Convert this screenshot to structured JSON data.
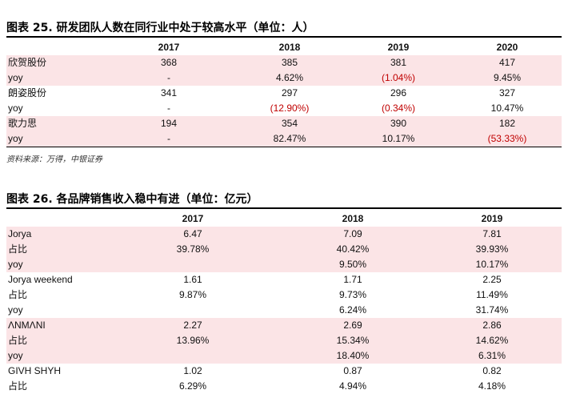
{
  "table1": {
    "title": "图表 25. 研发团队人数在同行业中处于较高水平（单位：人）",
    "headers": [
      "",
      "2017",
      "2018",
      "2019",
      "2020"
    ],
    "rows": [
      {
        "label": "欣贺股份",
        "values": [
          "368",
          "385",
          "381",
          "417"
        ],
        "negative": [
          false,
          false,
          false,
          false
        ],
        "shaded": true
      },
      {
        "label": "yoy",
        "values": [
          "-",
          "4.62%",
          "(1.04%)",
          "9.45%"
        ],
        "negative": [
          false,
          false,
          true,
          false
        ],
        "shaded": true
      },
      {
        "label": "朗姿股份",
        "values": [
          "341",
          "297",
          "296",
          "327"
        ],
        "negative": [
          false,
          false,
          false,
          false
        ],
        "shaded": false
      },
      {
        "label": "yoy",
        "values": [
          "-",
          "(12.90%)",
          "(0.34%)",
          "10.47%"
        ],
        "negative": [
          false,
          true,
          true,
          false
        ],
        "shaded": false
      },
      {
        "label": "歌力思",
        "values": [
          "194",
          "354",
          "390",
          "182"
        ],
        "negative": [
          false,
          false,
          false,
          false
        ],
        "shaded": true
      },
      {
        "label": "yoy",
        "values": [
          "-",
          "82.47%",
          "10.17%",
          "(53.33%)"
        ],
        "negative": [
          false,
          false,
          false,
          true
        ],
        "shaded": true
      }
    ],
    "source": "资料来源：万得，中银证券"
  },
  "table2": {
    "title": "图表 26. 各品牌销售收入稳中有进（单位：亿元）",
    "headers": [
      "",
      "2017",
      "2018",
      "2019"
    ],
    "rows": [
      {
        "label": "Jorya",
        "values": [
          "6.47",
          "7.09",
          "7.81"
        ],
        "shaded": true
      },
      {
        "label": "占比",
        "values": [
          "39.78%",
          "40.42%",
          "39.93%"
        ],
        "shaded": true
      },
      {
        "label": "yoy",
        "values": [
          "",
          "9.50%",
          "10.17%"
        ],
        "shaded": true
      },
      {
        "label": "Jorya weekend",
        "values": [
          "1.61",
          "1.71",
          "2.25"
        ],
        "shaded": false
      },
      {
        "label": "占比",
        "values": [
          "9.87%",
          "9.73%",
          "11.49%"
        ],
        "shaded": false
      },
      {
        "label": "yoy",
        "values": [
          "",
          "6.24%",
          "31.74%"
        ],
        "shaded": false
      },
      {
        "label": "ΛNMΛNI",
        "values": [
          "2.27",
          "2.69",
          "2.86"
        ],
        "shaded": true
      },
      {
        "label": "占比",
        "values": [
          "13.96%",
          "15.34%",
          "14.62%"
        ],
        "shaded": true
      },
      {
        "label": "yoy",
        "values": [
          "",
          "18.40%",
          "6.31%"
        ],
        "shaded": true
      },
      {
        "label": "GIVH SHYH",
        "values": [
          "1.02",
          "0.87",
          "0.82"
        ],
        "shaded": false
      },
      {
        "label": "占比",
        "values": [
          "6.29%",
          "4.94%",
          "4.18%"
        ],
        "shaded": false
      }
    ]
  }
}
